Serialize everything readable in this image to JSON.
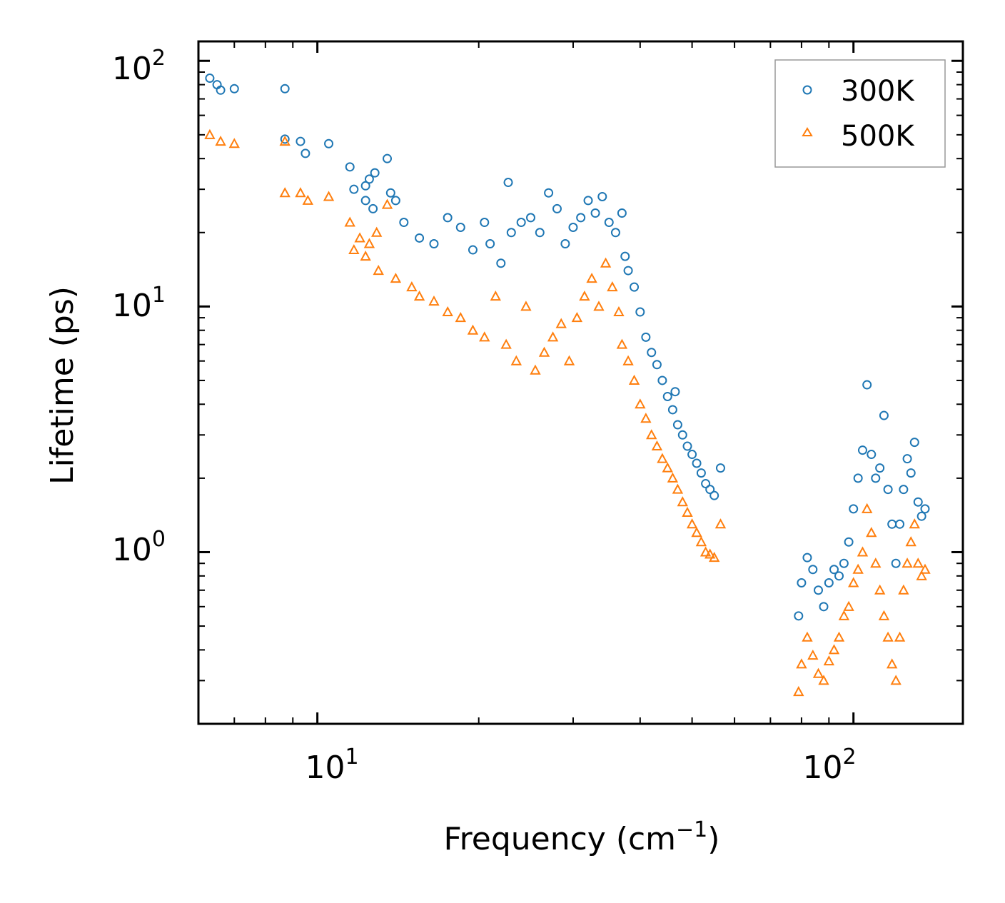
{
  "chart_data": {
    "type": "scatter",
    "xscale": "log",
    "yscale": "log",
    "xlim": [
      6,
      160
    ],
    "ylim": [
      0.2,
      120
    ],
    "xlabel": {
      "text": "Frequency (cm",
      "sup": "−1",
      "close": ")"
    },
    "ylabel": "Lifetime (ps)",
    "xticks": [
      {
        "value": 10,
        "base": "10",
        "exp": "1"
      },
      {
        "value": 100,
        "base": "10",
        "exp": "2"
      }
    ],
    "yticks": [
      {
        "value": 1,
        "base": "10",
        "exp": "0"
      },
      {
        "value": 10,
        "base": "10",
        "exp": "1"
      },
      {
        "value": 100,
        "base": "10",
        "exp": "2"
      }
    ],
    "legend_position": "top-right",
    "series": [
      {
        "name": "300K",
        "marker": "circle",
        "color": "#1f77b4",
        "points": [
          [
            6.3,
            85
          ],
          [
            6.5,
            80
          ],
          [
            6.6,
            76
          ],
          [
            7.0,
            77
          ],
          [
            8.7,
            77
          ],
          [
            8.7,
            48
          ],
          [
            9.3,
            47
          ],
          [
            9.5,
            42
          ],
          [
            10.5,
            46
          ],
          [
            11.5,
            37
          ],
          [
            11.7,
            30
          ],
          [
            12.3,
            31
          ],
          [
            12.5,
            33
          ],
          [
            12.8,
            35
          ],
          [
            13.5,
            40
          ],
          [
            13.7,
            29
          ],
          [
            12.3,
            27
          ],
          [
            12.7,
            25
          ],
          [
            14.0,
            27
          ],
          [
            14.5,
            22
          ],
          [
            15.5,
            19
          ],
          [
            16.5,
            18
          ],
          [
            17.5,
            23
          ],
          [
            18.5,
            21
          ],
          [
            19.5,
            17
          ],
          [
            20.5,
            22
          ],
          [
            21.0,
            18
          ],
          [
            22.0,
            15
          ],
          [
            22.7,
            32
          ],
          [
            23.0,
            20
          ],
          [
            24.0,
            22
          ],
          [
            25.0,
            23
          ],
          [
            26.0,
            20
          ],
          [
            27.0,
            29
          ],
          [
            28.0,
            25
          ],
          [
            29.0,
            18
          ],
          [
            30.0,
            21
          ],
          [
            31.0,
            23
          ],
          [
            32.0,
            27
          ],
          [
            33.0,
            24
          ],
          [
            34.0,
            28
          ],
          [
            35.0,
            22
          ],
          [
            36.0,
            20
          ],
          [
            37.0,
            24
          ],
          [
            37.5,
            16
          ],
          [
            38.0,
            14
          ],
          [
            39.0,
            12
          ],
          [
            40.0,
            9.5
          ],
          [
            41.0,
            7.5
          ],
          [
            42.0,
            6.5
          ],
          [
            43.0,
            5.8
          ],
          [
            44.0,
            5.0
          ],
          [
            45.0,
            4.3
          ],
          [
            46.0,
            3.8
          ],
          [
            47.0,
            3.3
          ],
          [
            48.0,
            3.0
          ],
          [
            49.0,
            2.7
          ],
          [
            50.0,
            2.5
          ],
          [
            51.0,
            2.3
          ],
          [
            52.0,
            2.1
          ],
          [
            53.0,
            1.9
          ],
          [
            54.0,
            1.8
          ],
          [
            55.0,
            1.7
          ],
          [
            56.5,
            2.2
          ],
          [
            46.5,
            4.5
          ],
          [
            79,
            0.55
          ],
          [
            80,
            0.75
          ],
          [
            82,
            0.95
          ],
          [
            84,
            0.85
          ],
          [
            86,
            0.7
          ],
          [
            88,
            0.6
          ],
          [
            90,
            0.75
          ],
          [
            92,
            0.85
          ],
          [
            94,
            0.8
          ],
          [
            96,
            0.9
          ],
          [
            98,
            1.1
          ],
          [
            100,
            1.5
          ],
          [
            102,
            2.0
          ],
          [
            104,
            2.6
          ],
          [
            106,
            4.8
          ],
          [
            108,
            2.5
          ],
          [
            110,
            2.0
          ],
          [
            112,
            2.2
          ],
          [
            114,
            3.6
          ],
          [
            116,
            1.8
          ],
          [
            118,
            1.3
          ],
          [
            120,
            0.9
          ],
          [
            122,
            1.3
          ],
          [
            124,
            1.8
          ],
          [
            126,
            2.4
          ],
          [
            128,
            2.1
          ],
          [
            130,
            2.8
          ],
          [
            132,
            1.6
          ],
          [
            134,
            1.4
          ],
          [
            136,
            1.5
          ]
        ]
      },
      {
        "name": "500K",
        "marker": "triangle",
        "color": "#ff7f0e",
        "points": [
          [
            6.3,
            50
          ],
          [
            6.6,
            47
          ],
          [
            7.0,
            46
          ],
          [
            8.7,
            47
          ],
          [
            8.7,
            29
          ],
          [
            9.3,
            29
          ],
          [
            9.6,
            27
          ],
          [
            10.5,
            28
          ],
          [
            11.5,
            22
          ],
          [
            12.0,
            19
          ],
          [
            12.5,
            18
          ],
          [
            12.9,
            20
          ],
          [
            13.5,
            26
          ],
          [
            11.7,
            17
          ],
          [
            12.3,
            16
          ],
          [
            13.0,
            14
          ],
          [
            14.0,
            13
          ],
          [
            15.0,
            12
          ],
          [
            15.5,
            11
          ],
          [
            16.5,
            10.5
          ],
          [
            17.5,
            9.5
          ],
          [
            18.5,
            9.0
          ],
          [
            19.5,
            8.0
          ],
          [
            20.5,
            7.5
          ],
          [
            21.5,
            11
          ],
          [
            22.5,
            7.0
          ],
          [
            23.5,
            6.0
          ],
          [
            24.5,
            10
          ],
          [
            25.5,
            5.5
          ],
          [
            26.5,
            6.5
          ],
          [
            27.5,
            7.5
          ],
          [
            28.5,
            8.5
          ],
          [
            29.5,
            6.0
          ],
          [
            30.5,
            9.0
          ],
          [
            31.5,
            11
          ],
          [
            32.5,
            13
          ],
          [
            33.5,
            10
          ],
          [
            34.5,
            15
          ],
          [
            35.5,
            12
          ],
          [
            36.5,
            9.5
          ],
          [
            37.0,
            7.0
          ],
          [
            38.0,
            6.0
          ],
          [
            39.0,
            5.0
          ],
          [
            40.0,
            4.0
          ],
          [
            41.0,
            3.5
          ],
          [
            42.0,
            3.0
          ],
          [
            43.0,
            2.7
          ],
          [
            44.0,
            2.4
          ],
          [
            45.0,
            2.2
          ],
          [
            46.0,
            2.0
          ],
          [
            47.0,
            1.8
          ],
          [
            48.0,
            1.6
          ],
          [
            49.0,
            1.45
          ],
          [
            50.0,
            1.3
          ],
          [
            51.0,
            1.2
          ],
          [
            52.0,
            1.1
          ],
          [
            53.0,
            1.0
          ],
          [
            54.0,
            0.98
          ],
          [
            55.0,
            0.95
          ],
          [
            56.5,
            1.3
          ],
          [
            79,
            0.27
          ],
          [
            80,
            0.35
          ],
          [
            82,
            0.45
          ],
          [
            84,
            0.38
          ],
          [
            86,
            0.32
          ],
          [
            88,
            0.3
          ],
          [
            90,
            0.36
          ],
          [
            92,
            0.4
          ],
          [
            94,
            0.45
          ],
          [
            96,
            0.55
          ],
          [
            98,
            0.6
          ],
          [
            100,
            0.75
          ],
          [
            102,
            0.85
          ],
          [
            104,
            1.0
          ],
          [
            106,
            1.5
          ],
          [
            108,
            1.2
          ],
          [
            110,
            0.9
          ],
          [
            112,
            0.7
          ],
          [
            114,
            0.55
          ],
          [
            116,
            0.45
          ],
          [
            118,
            0.35
          ],
          [
            120,
            0.3
          ],
          [
            122,
            0.45
          ],
          [
            124,
            0.7
          ],
          [
            126,
            0.9
          ],
          [
            128,
            1.1
          ],
          [
            130,
            1.3
          ],
          [
            132,
            0.9
          ],
          [
            134,
            0.8
          ],
          [
            136,
            0.85
          ]
        ]
      }
    ]
  }
}
